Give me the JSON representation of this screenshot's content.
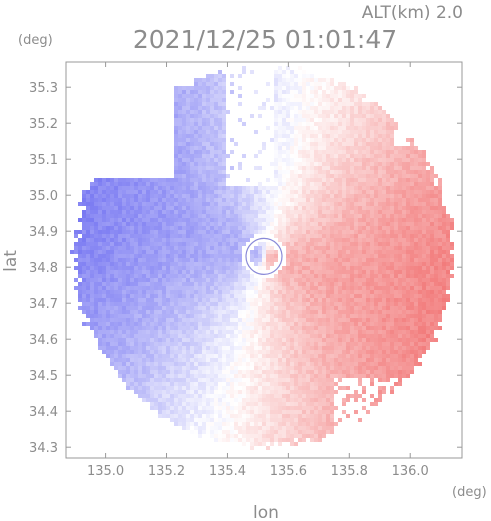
{
  "chart_data": {
    "type": "heatmap",
    "title": "2021/12/25 01:01:47",
    "subtitle": "ALT(km) 2.0",
    "xlabel": "lon",
    "ylabel": "lat",
    "xunit": "(deg)",
    "yunit": "(deg)",
    "xlim": [
      134.87,
      136.17
    ],
    "ylim": [
      34.27,
      35.37
    ],
    "xticks": [
      "135.0",
      "135.2",
      "135.4",
      "135.6",
      "135.8",
      "136.0"
    ],
    "xtick_values": [
      135.0,
      135.2,
      135.4,
      135.6,
      135.8,
      136.0
    ],
    "yticks": [
      "35.3",
      "35.2",
      "35.1",
      "35.0",
      "34.9",
      "34.8",
      "34.7",
      "34.6",
      "34.5",
      "34.4",
      "34.3"
    ],
    "ytick_values": [
      35.3,
      35.2,
      35.1,
      35.0,
      34.9,
      34.8,
      34.7,
      34.6,
      34.5,
      34.4,
      34.3
    ],
    "radar_center": {
      "lon": 135.52,
      "lat": 34.83
    },
    "radar_range_lon": 0.62,
    "approach_color": "#8080f0",
    "recede_color": "#f07070",
    "grid": false
  }
}
